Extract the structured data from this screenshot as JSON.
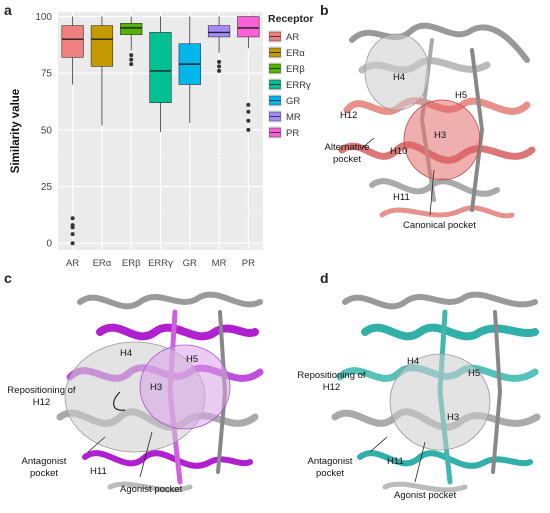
{
  "panels": {
    "a": "a",
    "b": "b",
    "c": "c",
    "d": "d"
  },
  "chart_data": {
    "type": "box",
    "categories": [
      "AR",
      "ERα",
      "ERβ",
      "ERRγ",
      "GR",
      "MR",
      "PR"
    ],
    "ylabel": "Similarity value",
    "xlabel": "",
    "ylim": [
      -3,
      102
    ],
    "yticks": [
      0,
      25,
      50,
      75,
      100
    ],
    "grid": true,
    "legend_title": "Receptor",
    "legend_position": "right",
    "colors": [
      "#F08080",
      "#C49A00",
      "#53B400",
      "#00C094",
      "#00B6EB",
      "#A58AFF",
      "#FB61D7"
    ],
    "boxes": [
      {
        "name": "AR",
        "whisker_low": 70,
        "q1": 82,
        "median": 90,
        "q3": 96,
        "whisker_high": 100,
        "outliers": [
          0,
          4,
          7,
          8,
          11
        ]
      },
      {
        "name": "ERα",
        "whisker_low": 52,
        "q1": 78,
        "median": 90,
        "q3": 96,
        "whisker_high": 100,
        "outliers": []
      },
      {
        "name": "ERβ",
        "whisker_low": 85,
        "q1": 92,
        "median": 95,
        "q3": 97,
        "whisker_high": 100,
        "outliers": [
          79,
          81,
          83
        ]
      },
      {
        "name": "ERRγ",
        "whisker_low": 49,
        "q1": 62,
        "median": 76,
        "q3": 93,
        "whisker_high": 100,
        "outliers": []
      },
      {
        "name": "GR",
        "whisker_low": 53,
        "q1": 70,
        "median": 79,
        "q3": 88,
        "whisker_high": 100,
        "outliers": []
      },
      {
        "name": "MR",
        "whisker_low": 84,
        "q1": 91,
        "median": 93,
        "q3": 96,
        "whisker_high": 100,
        "outliers": [
          76,
          78,
          80
        ]
      },
      {
        "name": "PR",
        "whisker_low": 86,
        "q1": 91,
        "median": 95,
        "q3": 100,
        "whisker_high": 100,
        "outliers": [
          50,
          54,
          58,
          61
        ]
      }
    ]
  },
  "structures": {
    "b": {
      "color": "#E8908A",
      "labels": [
        "H4",
        "H5",
        "H12",
        "H3",
        "H10",
        "H11"
      ],
      "annotations": [
        "Alternative pocket",
        "Canonical pocket"
      ]
    },
    "c": {
      "color": "#B020D0",
      "labels": [
        "H4",
        "H5",
        "H3",
        "H11"
      ],
      "annotations": [
        "Repositioning of H12",
        "Antagonist pocket",
        "Agonist pocket"
      ]
    },
    "d": {
      "color": "#30B0A8",
      "labels": [
        "H4",
        "H5",
        "H3",
        "H11"
      ],
      "annotations": [
        "Repositioning of H12",
        "Antagonist pocket",
        "Agonist pocket"
      ]
    }
  }
}
